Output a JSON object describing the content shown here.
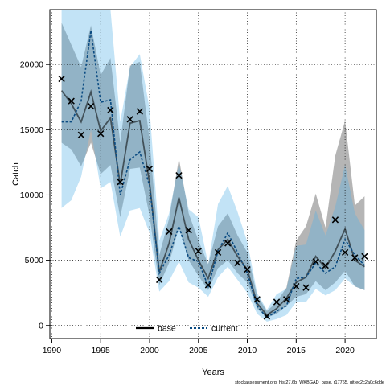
{
  "chart_data": {
    "type": "line",
    "xlabel": "Years",
    "ylabel": "Catch",
    "xlim": [
      1989.8,
      2023.2
    ],
    "ylim": [
      -1000,
      24200
    ],
    "x_ticks": [
      1990,
      1995,
      2000,
      2005,
      2010,
      2015,
      2020
    ],
    "y_ticks": [
      0,
      5000,
      10000,
      15000,
      20000
    ],
    "grid": "dotted",
    "legend_position": "bottom-center",
    "footer": "stockassessment.org, hist27.6b_WKBGAD_base, r17765, git:ec2c2a0c6dde",
    "colors": {
      "base_line": "#000000",
      "base_band": "#6b6b6b",
      "current_line": "#0a4b82",
      "current_band": "#4fb0e6"
    },
    "observed": {
      "marker": "x",
      "x": [
        1991,
        1992,
        1993,
        1994,
        1995,
        1996,
        1997,
        1998,
        1999,
        2000,
        2001,
        2002,
        2003,
        2004,
        2005,
        2006,
        2007,
        2008,
        2009,
        2010,
        2011,
        2012,
        2013,
        2014,
        2015,
        2016,
        2017,
        2018,
        2019,
        2020,
        2021,
        2022
      ],
      "y": [
        18900,
        17200,
        14600,
        16800,
        14700,
        16500,
        11000,
        15800,
        16400,
        12000,
        3500,
        7200,
        11500,
        7300,
        5700,
        3100,
        5600,
        6300,
        4800,
        4300,
        2000,
        700,
        1800,
        2000,
        3000,
        2900,
        4900,
        4600,
        8100,
        5600,
        5200,
        5300
      ]
    },
    "series": [
      {
        "name": "base",
        "x": [
          1991,
          1992,
          1993,
          1994,
          1995,
          1996,
          1997,
          1998,
          1999,
          2000,
          2001,
          2002,
          2003,
          2004,
          2005,
          2006,
          2007,
          2008,
          2009,
          2010,
          2011,
          2012,
          2013,
          2014,
          2015,
          2016,
          2017,
          2018,
          2019,
          2020,
          2021,
          2022
        ],
        "values": [
          18000,
          17000,
          15600,
          17900,
          14900,
          15900,
          10800,
          15500,
          15700,
          10900,
          4100,
          6300,
          9800,
          6600,
          5000,
          3600,
          5800,
          6600,
          5300,
          4300,
          1700,
          800,
          1300,
          2100,
          3300,
          3700,
          5300,
          4400,
          5700,
          7400,
          5000,
          4500
        ],
        "lower": [
          14000,
          13500,
          12200,
          14000,
          11600,
          12300,
          8300,
          12000,
          12100,
          8400,
          3100,
          4800,
          7500,
          5000,
          3800,
          2700,
          4400,
          5000,
          4000,
          3300,
          1300,
          600,
          900,
          1500,
          2200,
          2400,
          3400,
          2700,
          3300,
          4200,
          3000,
          2700
        ],
        "upper": [
          23200,
          21500,
          19800,
          23000,
          19200,
          20500,
          14000,
          19900,
          20200,
          14200,
          5400,
          8200,
          12800,
          8600,
          6500,
          4700,
          7600,
          8600,
          6900,
          5600,
          2300,
          1100,
          1800,
          2900,
          6500,
          7600,
          10100,
          7500,
          13000,
          15700,
          9200,
          9900
        ]
      },
      {
        "name": "current",
        "x": [
          1991,
          1992,
          1993,
          1994,
          1995,
          1996,
          1997,
          1998,
          1999,
          2000,
          2001,
          2002,
          2003,
          2004,
          2005,
          2006,
          2007,
          2008,
          2009,
          2010,
          2011,
          2012,
          2013,
          2014,
          2015,
          2016,
          2017,
          2018,
          2019,
          2020,
          2021,
          2022
        ],
        "values": [
          15600,
          15600,
          17200,
          22600,
          17100,
          17300,
          10000,
          12700,
          13300,
          10700,
          4000,
          5400,
          7600,
          5200,
          4900,
          3000,
          5700,
          7100,
          5600,
          4000,
          1500,
          600,
          1100,
          1500,
          3600,
          3700,
          4800,
          4000,
          4500,
          6600,
          5400,
          4600
        ],
        "lower": [
          9000,
          9600,
          11400,
          15000,
          10500,
          11000,
          6800,
          8800,
          9000,
          7100,
          2600,
          3400,
          4900,
          3300,
          2900,
          2200,
          3700,
          4500,
          3500,
          2500,
          900,
          300,
          500,
          800,
          1800,
          1800,
          2800,
          2300,
          2700,
          3600,
          3000,
          2700
        ],
        "upper": [
          24200,
          24200,
          24200,
          24200,
          24200,
          24200,
          15600,
          19800,
          20800,
          16600,
          6500,
          8600,
          12400,
          8900,
          8300,
          4700,
          9300,
          10700,
          8700,
          6400,
          2500,
          1200,
          2400,
          2800,
          6100,
          6200,
          8800,
          6900,
          9100,
          12300,
          8600,
          7300
        ]
      }
    ]
  }
}
